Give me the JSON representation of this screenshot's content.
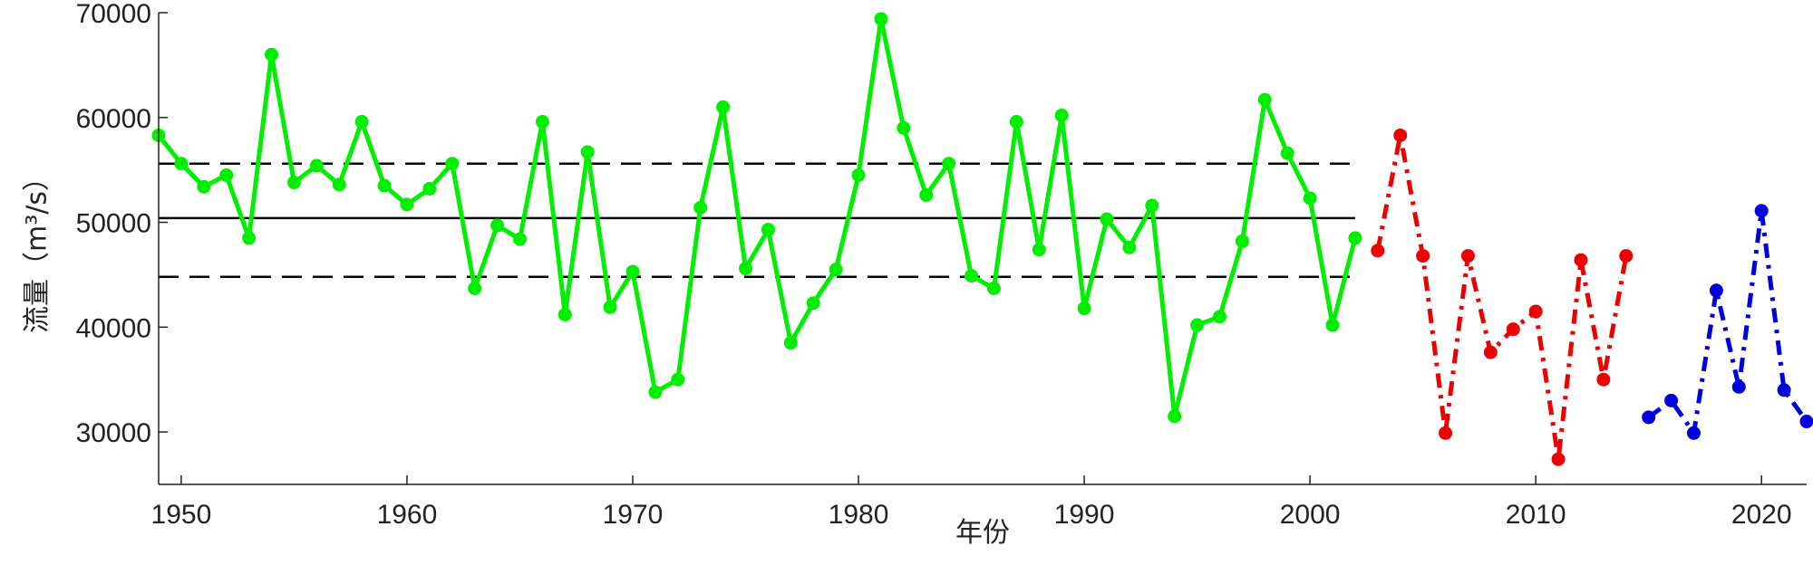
{
  "chart_data": {
    "type": "line",
    "xlabel": "年份",
    "ylabel": "流量（m³/s）",
    "xlim": [
      1949,
      2022
    ],
    "ylim": [
      25000,
      70000
    ],
    "x_ticks": [
      1950,
      1960,
      1970,
      1980,
      1990,
      2000,
      2010,
      2020
    ],
    "y_ticks": [
      30000,
      40000,
      50000,
      60000,
      70000
    ],
    "grid": false,
    "reference_lines": [
      {
        "y": 50400,
        "x_range": [
          1949,
          2002
        ],
        "style": "solid",
        "color": "#000000"
      },
      {
        "y": 55600,
        "x_range": [
          1949,
          2002
        ],
        "style": "dashed",
        "color": "#000000"
      },
      {
        "y": 44800,
        "x_range": [
          1949,
          2002
        ],
        "style": "dashed",
        "color": "#000000"
      }
    ],
    "series": [
      {
        "color": "#00ee00",
        "line_style": "solid",
        "x": [
          1949,
          1950,
          1951,
          1952,
          1953,
          1954,
          1955,
          1956,
          1957,
          1958,
          1959,
          1960,
          1961,
          1962,
          1963,
          1964,
          1965,
          1966,
          1967,
          1968,
          1969,
          1970,
          1971,
          1972,
          1973,
          1974,
          1975,
          1976,
          1977,
          1978,
          1979,
          1980,
          1981,
          1982,
          1983,
          1984,
          1985,
          1986,
          1987,
          1988,
          1989,
          1990,
          1991,
          1992,
          1993,
          1994,
          1995,
          1996,
          1997,
          1998,
          1999,
          2000,
          2001,
          2002
        ],
        "values": [
          58300,
          55600,
          53400,
          54500,
          48500,
          66000,
          53800,
          55400,
          53600,
          59600,
          53500,
          51700,
          53200,
          55600,
          43700,
          49700,
          48400,
          59600,
          41200,
          56700,
          41900,
          45300,
          33800,
          35000,
          51400,
          61000,
          45600,
          49300,
          38500,
          42300,
          45500,
          54500,
          69400,
          59000,
          52600,
          55600,
          44900,
          43700,
          59600,
          47400,
          60200,
          41800,
          50300,
          47600,
          51600,
          31500,
          40200,
          41000,
          48200,
          61700,
          56600,
          52300,
          40200,
          48500
        ]
      },
      {
        "color": "#ee0000",
        "line_style": "dash-dot",
        "x": [
          2003,
          2004,
          2005,
          2006,
          2007,
          2008,
          2009,
          2010,
          2011,
          2012,
          2013,
          2014
        ],
        "values": [
          47300,
          58300,
          46800,
          29900,
          46800,
          37600,
          39800,
          41500,
          27400,
          46400,
          35000,
          46800
        ]
      },
      {
        "color": "#0000dd",
        "line_style": "dash-dot",
        "x": [
          2015,
          2016,
          2017,
          2018,
          2019,
          2020,
          2021,
          2022
        ],
        "values": [
          31400,
          33000,
          29900,
          43500,
          34300,
          51100,
          34000,
          31000
        ]
      }
    ]
  }
}
